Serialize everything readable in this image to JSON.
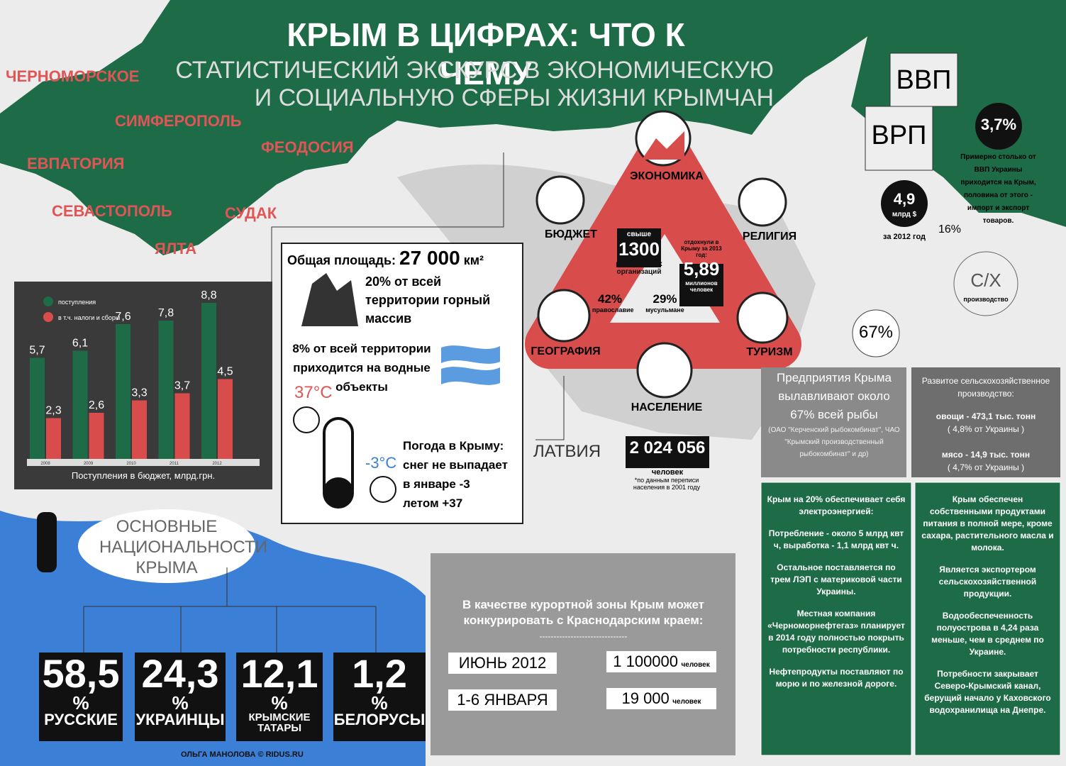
{
  "header": {
    "title": "КРЫМ В ЦИФРАХ: ЧТО К ЧЕМУ",
    "subtitle": [
      "СТАТИСТИЧЕСКИЙ ЭКСКУРС В ЭКОНОМИЧЕСКУЮ",
      "И СОЦИАЛЬНУЮ СФЕРЫ ЖИЗНИ КРЫМЧАН"
    ]
  },
  "cities": [
    "ЧЕРНОМОРСКОЕ",
    "СИМФЕРОПОЛЬ",
    "ЕВПАТОРИЯ",
    "ФЕОДОСИЯ",
    "СЕВАСТОПОЛЬ",
    "СУДАК",
    "ЯЛТА"
  ],
  "chart_data": {
    "type": "bar",
    "title": "Поступления в бюджет, млрд.грн.",
    "categories": [
      "2008",
      "2009",
      "2010",
      "2011",
      "2012"
    ],
    "series": [
      {
        "name": "поступления",
        "color": "#1e6b47",
        "values": [
          5.7,
          6.1,
          7.6,
          7.8,
          8.8
        ],
        "value_labels": [
          "5,7",
          "6,1",
          "7,6",
          "7,8",
          "8,8"
        ]
      },
      {
        "name": "в т.ч. налоги и сборы",
        "color": "#d94c4c",
        "values": [
          2.3,
          2.6,
          3.3,
          3.7,
          4.5
        ],
        "value_labels": [
          "2,3",
          "2,6",
          "3,3",
          "3,7",
          "4,5"
        ]
      }
    ],
    "ylim": [
      0,
      10
    ]
  },
  "geography": {
    "area_label": "Общая площадь:",
    "area_value": "27 000",
    "area_unit": "км²",
    "mountains": "20% от всей территории горный массив",
    "water": "8% от всей территории приходится на водные объекты",
    "temp_high": "37°C",
    "temp_low": "-3°C",
    "weather": [
      "Погода в Крыму:",
      "снег не выпадает",
      "в январе -3",
      "летом +37"
    ]
  },
  "triangle": {
    "economy": "ЭКОНОМИКА",
    "budget": "БЮДЖЕТ",
    "religion": "РЕЛИГИЯ",
    "geography": "ГЕОГРАФИЯ",
    "tourism": "ТУРИЗМ",
    "population": "НАСЕЛЕНИЕ",
    "religious_orgs": [
      "свыше",
      "1300",
      "религиозных организаций"
    ],
    "tourists": [
      "отдохнули в Крыму за 2013 год:",
      "5,89",
      "миллионов человек"
    ],
    "orthodox": [
      "42%",
      "православие"
    ],
    "muslim": [
      "29%",
      "мусульмане"
    ]
  },
  "population": {
    "compare": "ЛАТВИЯ",
    "value": "2 024 056",
    "unit": "человек",
    "note": "*по данным переписи населения в 2001 году"
  },
  "nationalities": {
    "title": "ОСНОВНЫЕ НАЦИОНАЛЬНОСТИ КРЫМА",
    "items": [
      {
        "value": "58,5",
        "unit": "%",
        "name": "РУССКИЕ"
      },
      {
        "value": "24,3",
        "unit": "%",
        "name": "УКРАИНЦЫ"
      },
      {
        "value": "12,1",
        "unit": "%",
        "name": "КРЫМСКИЕ ТАТАРЫ"
      },
      {
        "value": "1,2",
        "unit": "%",
        "name": "БЕЛОРУСЫ"
      }
    ]
  },
  "credit": "ОЛЬГА МАНОЛОВА © RIDUS.RU",
  "tourism": {
    "text": "В качестве курортной зоны Крым может конкурировать с Краснодарским краем:",
    "divider": "-------------------------------",
    "rows": [
      [
        "ИЮНЬ 2012",
        "1 100000",
        "человек"
      ],
      [
        "1-6 ЯНВАРЯ",
        "19 000",
        "человек"
      ]
    ]
  },
  "economy": {
    "gdp": "ВВП",
    "grp": "ВРП",
    "share": "3,7%",
    "share_text": "Примерно столько от ВВП Украины приходится на Крым, половина от этого - импорт и экспорт товаров.",
    "grp_value": "4,9",
    "grp_unit": "млрд $",
    "grp_year": "за 2012 год",
    "agri_share": "16%",
    "fish_share": "67%",
    "agri": "С/Х",
    "agri_sub": "производство"
  },
  "fish": {
    "title": "Предприятия Крыма вылавливают около 67% всей рыбы",
    "note": "(ОАО \"Керченский рыбокомбинат\", ЧАО \"Крымский производственный рыбокомбинат\" и др)"
  },
  "agriculture": {
    "title": "Развитое сельскохозяйственное производство:",
    "items": [
      [
        "овощи - 473,1 тыс. тонн",
        "( 4,8% от Украины )"
      ],
      [
        "мясо - 14,9 тыс. тонн",
        "( 4,7% от Украины )"
      ]
    ]
  },
  "energy": [
    "Крым на 20% обеспечивает себя электроэнергией:",
    "Потребление - около 5 млрд квт ч, выработка - 1,1 млрд квт ч.",
    "Остальное поставляется по трем ЛЭП с материковой части Украины.",
    "Местная компания «Черноморнефтегаз» планирует в 2014 году полностью покрыть потребности республики.",
    "Нефтепродукты поставляют по морю и по железной дороге."
  ],
  "food": [
    "Крым обеспечен собственными продуктами питания в полной мере, кроме сахара, растительного масла и молока.",
    "Является экспортером сельскохозяйственной продукции.",
    "Водообеспеченность полуострова в 4,24 раза меньше, чем в среднем по Украине.",
    "Потребности закрывает Северо-Крымский канал, берущий начало у Каховского водохранилища на Днепре."
  ]
}
